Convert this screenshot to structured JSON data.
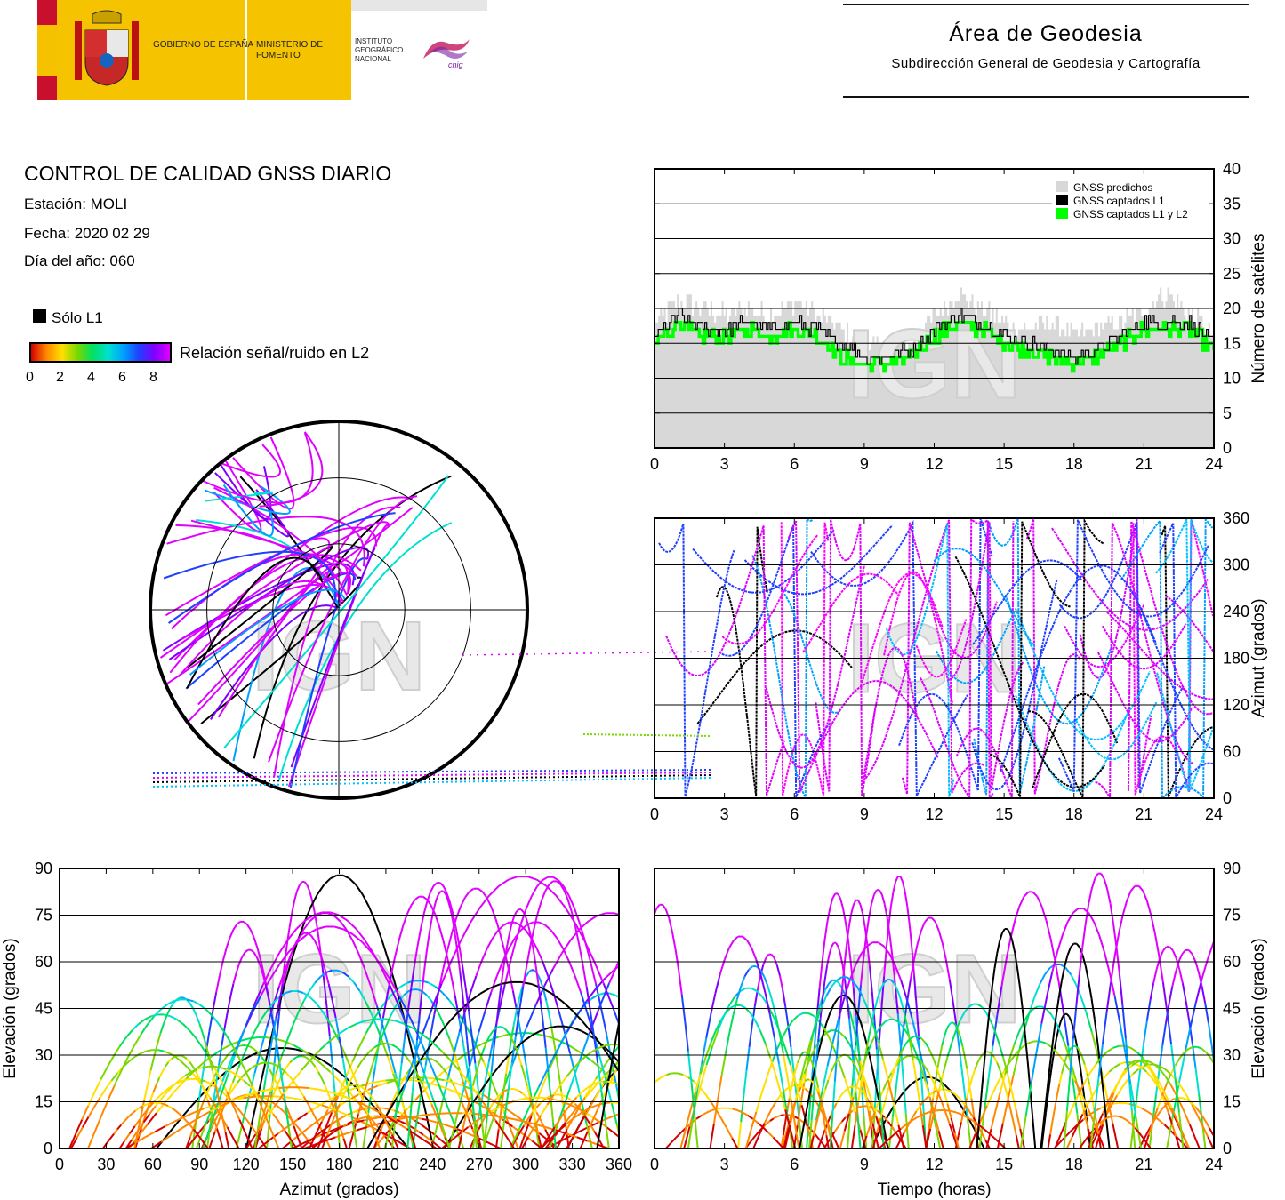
{
  "header": {
    "logo_gob": "GOBIERNO DE ESPAÑA",
    "logo_min": "MINISTERIO DE FOMENTO",
    "logo_ign": "INSTITUTO GEOGRÁFICO NACIONAL",
    "area_title": "Área de Geodesia",
    "area_subtitle": "Subdirección General de Geodesia y Cartografía"
  },
  "info": {
    "title": "CONTROL DE CALIDAD GNSS DIARIO",
    "station": "Estación: MOLI",
    "date": "Fecha: 2020 02 29",
    "doy": "Día del año: 060"
  },
  "legend": {
    "only_l1": "Sólo L1",
    "snr_label": "Relación señal/ruido en L2",
    "snr_ticks": [
      "0",
      "2",
      "4",
      "6",
      "8"
    ]
  },
  "watermark": "IGN",
  "colors": {
    "predicted": "#d8d8d8",
    "l1": "#000000",
    "l1l2": "#00ff00",
    "snr_scale": [
      "#d40000",
      "#ff8800",
      "#ffe000",
      "#7ad800",
      "#00e060",
      "#00e0d0",
      "#00a0ff",
      "#2040ff",
      "#8000ff",
      "#e000ff"
    ]
  },
  "chart_data": [
    {
      "type": "area",
      "id": "satellites",
      "xticks": [
        "0",
        "3",
        "6",
        "9",
        "12",
        "15",
        "18",
        "21",
        "24"
      ],
      "yticks": [
        "0",
        "5",
        "10",
        "15",
        "20",
        "25",
        "30",
        "35",
        "40"
      ],
      "ylabel": "Número de satélites",
      "xlim": [
        0,
        24
      ],
      "ylim": [
        0,
        40
      ],
      "grid": true,
      "legend_position": "top-right",
      "legend": [
        "GNSS predichos",
        "GNSS captados L1",
        "GNSS captados L1 y L2"
      ],
      "series": [
        {
          "name": "GNSS predichos",
          "x": [
            0,
            1,
            2,
            3,
            4,
            5,
            6,
            7,
            8,
            9,
            10,
            11,
            12,
            13,
            14,
            15,
            16,
            17,
            18,
            19,
            20,
            21,
            22,
            23,
            24
          ],
          "values": [
            18,
            21,
            20,
            19,
            20,
            19,
            21,
            19,
            17,
            15,
            14,
            15,
            19,
            22,
            20,
            18,
            17,
            18,
            16,
            17,
            18,
            20,
            22,
            19,
            16
          ]
        },
        {
          "name": "GNSS captados L1",
          "x": [
            0,
            1,
            2,
            3,
            4,
            5,
            6,
            7,
            8,
            9,
            10,
            11,
            12,
            13,
            14,
            15,
            16,
            17,
            18,
            19,
            20,
            21,
            22,
            23,
            24
          ],
          "values": [
            16,
            19,
            17,
            17,
            18,
            17,
            18,
            17,
            15,
            13,
            13,
            14,
            17,
            19,
            18,
            16,
            15,
            14,
            13,
            14,
            16,
            18,
            18,
            18,
            15
          ]
        },
        {
          "name": "GNSS captados L1 y L2",
          "x": [
            0,
            1,
            2,
            3,
            4,
            5,
            6,
            7,
            8,
            9,
            10,
            11,
            12,
            13,
            14,
            15,
            16,
            17,
            18,
            19,
            20,
            21,
            22,
            23,
            24
          ],
          "values": [
            15,
            18,
            16,
            16,
            17,
            16,
            17,
            16,
            13,
            12,
            12,
            13,
            16,
            18,
            17,
            15,
            14,
            13,
            12,
            13,
            15,
            17,
            17,
            17,
            14
          ]
        }
      ]
    },
    {
      "type": "scatter",
      "id": "azimuth-time",
      "xticks": [
        "0",
        "3",
        "6",
        "9",
        "12",
        "15",
        "18",
        "21",
        "24"
      ],
      "yticks": [
        "0",
        "60",
        "120",
        "180",
        "240",
        "300",
        "360"
      ],
      "ylabel": "Azimut (grados)",
      "xlim": [
        0,
        24
      ],
      "ylim": [
        0,
        360
      ],
      "grid": true
    },
    {
      "type": "scatter",
      "id": "skyplot",
      "rings": [
        0,
        30,
        60,
        90
      ],
      "grid": true
    },
    {
      "type": "scatter",
      "id": "elev-azimuth",
      "xticks": [
        "0",
        "30",
        "60",
        "90",
        "120",
        "150",
        "180",
        "210",
        "240",
        "270",
        "300",
        "330",
        "360"
      ],
      "yticks": [
        "0",
        "15",
        "30",
        "45",
        "60",
        "75",
        "90"
      ],
      "xlabel": "Azimut (grados)",
      "ylabel": "Elevación (grados)",
      "xlim": [
        0,
        360
      ],
      "ylim": [
        0,
        90
      ],
      "grid": true
    },
    {
      "type": "scatter",
      "id": "elev-time",
      "xticks": [
        "0",
        "3",
        "6",
        "9",
        "12",
        "15",
        "18",
        "21",
        "24"
      ],
      "yticks": [
        "0",
        "15",
        "30",
        "45",
        "60",
        "75",
        "90"
      ],
      "xlabel": "Tiempo (horas)",
      "ylabel": "Elevación (grados)",
      "xlim": [
        0,
        24
      ],
      "ylim": [
        0,
        90
      ],
      "grid": true
    }
  ]
}
